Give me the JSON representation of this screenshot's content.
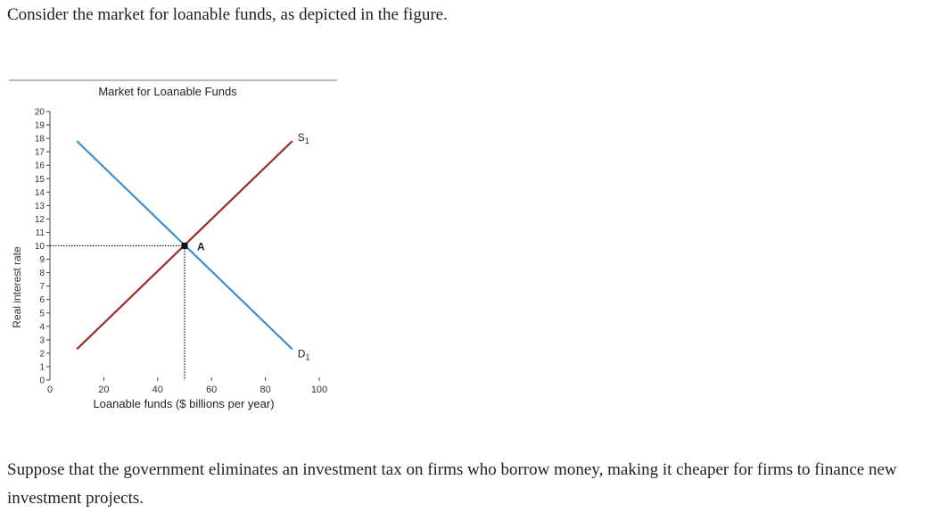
{
  "question": {
    "intro": "Consider the market for loanable funds, as depicted in the figure.",
    "followup": "Suppose that the government eliminates an investment tax on firms who borrow money, making it cheaper for firms to finance new investment projects."
  },
  "chart_data": {
    "type": "line",
    "title": "Market for Loanable Funds",
    "xlabel": "Loanable funds ($ billions per year)",
    "ylabel": "Real interest rate",
    "xlim": [
      0,
      100
    ],
    "ylim": [
      0,
      20
    ],
    "x_ticks": [
      0,
      20,
      40,
      60,
      80,
      100
    ],
    "y_ticks": [
      0,
      1,
      2,
      3,
      4,
      5,
      6,
      7,
      8,
      9,
      10,
      11,
      12,
      13,
      14,
      15,
      16,
      17,
      18,
      19,
      20
    ],
    "series": [
      {
        "name": "S",
        "subscript": "1",
        "color": "#9b2a24",
        "points": [
          [
            10,
            2.3
          ],
          [
            90,
            17.8
          ]
        ]
      },
      {
        "name": "D",
        "subscript": "1",
        "color": "#3a8fd0",
        "points": [
          [
            10,
            17.8
          ],
          [
            90,
            2.3
          ]
        ]
      }
    ],
    "equilibrium": {
      "label": "A",
      "x": 50,
      "y": 10
    },
    "grid": false
  }
}
